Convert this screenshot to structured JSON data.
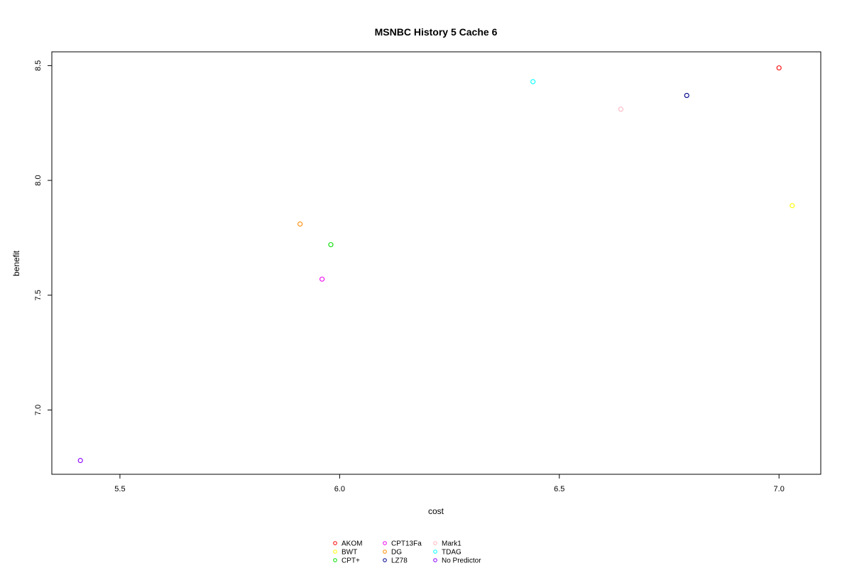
{
  "chart_data": {
    "type": "scatter",
    "title": "MSNBC  History  5  Cache  6",
    "xlabel": "cost",
    "ylabel": "benefit",
    "xlim": [
      5.345,
      7.095
    ],
    "ylim": [
      6.72,
      8.56
    ],
    "xticks": [
      5.5,
      6.0,
      6.5,
      7.0
    ],
    "xtick_labels": [
      "5.5",
      "6.0",
      "6.5",
      "7.0"
    ],
    "yticks": [
      7.0,
      7.5,
      8.0,
      8.5
    ],
    "ytick_labels": [
      "7.0",
      "7.5",
      "8.0",
      "8.5"
    ],
    "grid": false,
    "legend_position": "bottom-center",
    "series": [
      {
        "name": "AKOM",
        "color": "#ff0000",
        "x": 7.0,
        "y": 8.49
      },
      {
        "name": "BWT",
        "color": "#ffff00",
        "x": 7.03,
        "y": 7.89
      },
      {
        "name": "CPT+",
        "color": "#00dd00",
        "x": 5.98,
        "y": 7.72
      },
      {
        "name": "CPT13Fa",
        "color": "#ee00ee",
        "x": 5.96,
        "y": 7.57
      },
      {
        "name": "DG",
        "color": "#ff8c00",
        "x": 5.91,
        "y": 7.81
      },
      {
        "name": "LZ78",
        "color": "#00008b",
        "x": 6.79,
        "y": 8.37
      },
      {
        "name": "Mark1",
        "color": "#ffb6c1",
        "x": 6.64,
        "y": 8.31
      },
      {
        "name": "TDAG",
        "color": "#00ffff",
        "x": 6.44,
        "y": 8.43
      },
      {
        "name": "No Predictor",
        "color": "#8b00ff",
        "x": 5.41,
        "y": 6.78
      }
    ]
  }
}
